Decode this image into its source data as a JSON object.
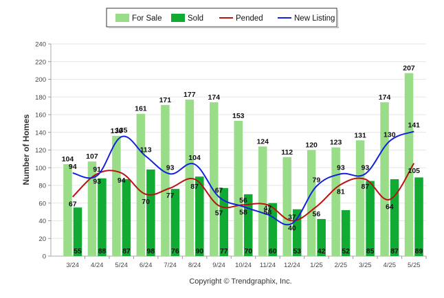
{
  "chart_data": {
    "type": "bar",
    "categories": [
      "3/24",
      "4/24",
      "5/24",
      "6/24",
      "7/24",
      "8/24",
      "9/24",
      "10/24",
      "11/24",
      "12/24",
      "1/25",
      "2/25",
      "3/25",
      "4/25",
      "5/25"
    ],
    "series": [
      {
        "name": "For Sale",
        "kind": "bar",
        "color": "#99dd88",
        "values": [
          104,
          107,
          136,
          161,
          171,
          177,
          174,
          153,
          124,
          112,
          120,
          123,
          131,
          174,
          207
        ]
      },
      {
        "name": "Sold",
        "kind": "bar",
        "color": "#11aa33",
        "values": [
          55,
          88,
          87,
          98,
          76,
          90,
          77,
          70,
          60,
          53,
          42,
          52,
          85,
          87,
          89
        ]
      },
      {
        "name": "Pended",
        "kind": "line",
        "color": "#bb1111",
        "values": [
          67,
          93,
          94,
          70,
          77,
          87,
          57,
          58,
          58,
          40,
          56,
          81,
          87,
          64,
          105
        ]
      },
      {
        "name": "New Listing",
        "kind": "line",
        "color": "#1122dd",
        "values": [
          94,
          91,
          135,
          113,
          93,
          104,
          67,
          56,
          47,
          37,
          79,
          93,
          93,
          130,
          141
        ]
      }
    ],
    "ylabel": "Number of Homes",
    "ylim": [
      0,
      240
    ],
    "yticks": [
      "0",
      "20",
      "40",
      "60",
      "80",
      "100",
      "120",
      "140",
      "160",
      "180",
      "200",
      "220",
      "240"
    ],
    "grid": true,
    "legend_position": "top-center",
    "footer": "Copyright © Trendgraphix, Inc."
  }
}
